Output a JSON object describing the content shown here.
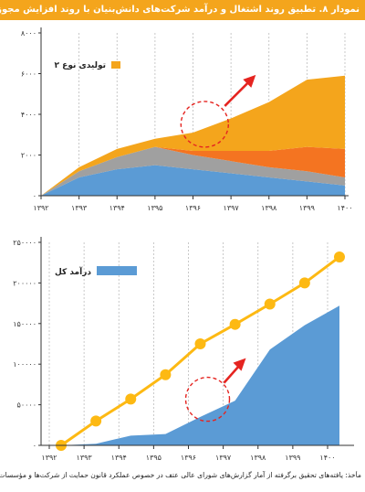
{
  "title": "نمودار ۸. تطبیق روند اشتغال و درآمد شرکت‌های دانش‌بنیان با روند افزایش مجوزهای دانش‌بنیانی",
  "source_note": "مأخذ: یافته‌های تحقیق برگرفته از آمار گزارش‌های شورای عالی عتف در خصوص عملکرد قانون حمایت از شرکت‌ها و مؤسسات دانش‌بنیان.",
  "colors": {
    "orange": "#f4a51c",
    "red_orange": "#f47421",
    "gray": "#a0a0a0",
    "blue": "#5b9bd5",
    "yellow_line": "#fdb913",
    "arrow_red": "#e52420"
  },
  "chart_data": [
    {
      "type": "area",
      "x": [
        "۱۳۹۲",
        "۱۳۹۳",
        "۱۳۹۴",
        "۱۳۹۵",
        "۱۳۹۶",
        "۱۳۹۷",
        "۱۳۹۸",
        "۱۳۹۹",
        "۱۴۰۰"
      ],
      "yticks": [
        "۰",
        "۲۰۰۰",
        "۴۰۰۰",
        "۶۰۰۰",
        "۸۰۰۰"
      ],
      "ylim": [
        0,
        8000
      ],
      "stacked": true,
      "series": [
        {
          "values": [
            0,
            900,
            1300,
            1500,
            1300,
            1100,
            900,
            700,
            500
          ]
        },
        {
          "values": [
            0,
            300,
            600,
            900,
            700,
            600,
            500,
            500,
            400
          ]
        },
        {
          "values": [
            0,
            0,
            0,
            0,
            200,
            500,
            800,
            1200,
            1400
          ]
        },
        {
          "name": "تولیدی نوع ۲",
          "values": [
            0,
            200,
            400,
            400,
            900,
            1600,
            2400,
            3300,
            3600
          ]
        }
      ],
      "legend": [
        {
          "label": "تولیدی نوع ۲",
          "color": "#f4a51c"
        }
      ],
      "legend_position": "top-left",
      "grid": "vertical"
    },
    {
      "type": "area",
      "x": [
        "۱۳۹۲",
        "۱۳۹۳",
        "۱۳۹۴",
        "۱۳۹۵",
        "۱۳۹۶",
        "۱۳۹۷",
        "۱۳۹۸",
        "۱۳۹۹",
        "۱۴۰۰"
      ],
      "yticks": [
        "۰",
        "۵۰۰۰۰",
        "۱۰۰۰۰۰",
        "۱۵۰۰۰۰",
        "۲۰۰۰۰۰",
        "۲۵۰۰۰۰"
      ],
      "ylim": [
        0,
        250000
      ],
      "series": [
        {
          "name": "درآمد کل",
          "type": "area",
          "values": [
            0,
            2000,
            12000,
            14000,
            35000,
            55000,
            118000,
            148000,
            172000
          ]
        },
        {
          "type": "line",
          "values": [
            0,
            30000,
            57000,
            87000,
            125000,
            149000,
            174000,
            200000,
            232000
          ]
        }
      ],
      "legend": [
        {
          "label": "درآمد کل",
          "color": "#5b9bd5"
        }
      ],
      "legend_position": "top-left",
      "grid": "vertical"
    }
  ]
}
